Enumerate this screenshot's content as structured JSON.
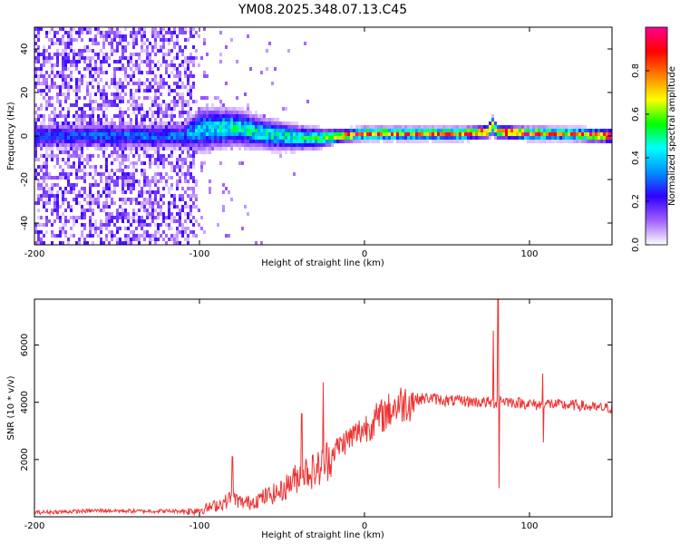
{
  "title": "YM08.2025.348.07.13.C45",
  "chart_data": [
    {
      "type": "heatmap",
      "title": "YM08.2025.348.07.13.C45",
      "xlabel": "Height of straight line (km)",
      "ylabel": "Frequency (Hz)",
      "xlim": [
        -200,
        150
      ],
      "ylim": [
        -50,
        50
      ],
      "xticks": [
        "-200",
        "-100",
        "0",
        "100"
      ],
      "yticks": [
        "-40",
        "-20",
        "0",
        "20",
        "40"
      ],
      "xtick_values": [
        -200,
        -100,
        0,
        100
      ],
      "ytick_values": [
        -40,
        -20,
        0,
        20,
        40
      ],
      "colorbar": {
        "label": "Normalized spectral amplitude",
        "range": [
          0,
          1
        ],
        "ticks": [
          "0.0",
          "0.2",
          "0.4",
          "0.6",
          "0.8"
        ],
        "tick_values": [
          0,
          0.2,
          0.4,
          0.6,
          0.8
        ],
        "colormap": [
          "#ffffff",
          "#a060ff",
          "#3000ff",
          "#0090ff",
          "#00ffff",
          "#00ff00",
          "#ffff00",
          "#ff8000",
          "#ff0000",
          "#ff0090"
        ]
      },
      "ridge": {
        "x": [
          -200,
          -150,
          -110,
          -100,
          -80,
          -60,
          -40,
          -25,
          -15,
          0,
          20,
          40,
          60,
          75,
          78,
          80,
          100,
          120,
          150
        ],
        "center_freq_hz": [
          0,
          0,
          0,
          3,
          4,
          1,
          -1,
          -1,
          0,
          1,
          1,
          1,
          1,
          2,
          5,
          2,
          1,
          1,
          0
        ],
        "peak_amplitude": [
          0.25,
          0.3,
          0.3,
          0.4,
          0.45,
          0.45,
          0.45,
          0.55,
          0.75,
          0.85,
          0.8,
          0.75,
          0.8,
          0.85,
          0.6,
          0.9,
          0.9,
          0.7,
          1.0
        ],
        "half_width_hz": [
          4,
          4,
          4,
          7,
          6,
          5,
          4,
          3,
          2,
          2,
          2,
          2,
          2,
          2,
          3,
          2,
          2,
          2,
          2
        ]
      },
      "noise_region": {
        "x_range": [
          -200,
          -103
        ],
        "freq_range": [
          -50,
          50
        ],
        "amplitude": 0.12
      }
    },
    {
      "type": "line",
      "xlabel": "Height of straight line (km)",
      "ylabel": "SNR (10 * v/v)",
      "xlim": [
        -200,
        150
      ],
      "ylim": [
        0,
        7600
      ],
      "xticks": [
        "-200",
        "-100",
        "0",
        "100"
      ],
      "yticks": [
        "2000",
        "4000",
        "6000"
      ],
      "xtick_values": [
        -200,
        -100,
        0,
        100
      ],
      "ytick_values": [
        2000,
        4000,
        6000
      ],
      "series": [
        {
          "name": "SNR",
          "color": "#ee3333",
          "x": [
            -200,
            -180,
            -160,
            -140,
            -120,
            -105,
            -95,
            -85,
            -80,
            -75,
            -70,
            -60,
            -50,
            -45,
            -40,
            -35,
            -30,
            -25,
            -20,
            -15,
            -10,
            -5,
            0,
            5,
            10,
            15,
            20,
            25,
            30,
            40,
            50,
            60,
            70,
            75,
            78,
            80,
            82,
            85,
            90,
            100,
            105,
            110,
            120,
            130,
            140,
            150
          ],
          "y": [
            150,
            180,
            220,
            200,
            200,
            200,
            300,
            500,
            700,
            500,
            500,
            700,
            900,
            1200,
            1400,
            1600,
            1600,
            1800,
            2200,
            2500,
            2700,
            2900,
            3100,
            3300,
            3500,
            3700,
            3900,
            4000,
            4100,
            4150,
            4050,
            4050,
            4000,
            4000,
            3950,
            4000,
            4100,
            4050,
            4000,
            3950,
            3900,
            3950,
            3900,
            3900,
            3800,
            3800
          ],
          "spikes": [
            {
              "x": -80,
              "y": 2100
            },
            {
              "x": -38,
              "y": 3600
            },
            {
              "x": -25,
              "y": 4700
            },
            {
              "x": 78,
              "y": 6500
            },
            {
              "x": 81,
              "y": 7600
            },
            {
              "x": 81.5,
              "y": 1000
            },
            {
              "x": 108,
              "y": 5000
            },
            {
              "x": 108.5,
              "y": 2600
            }
          ]
        }
      ]
    }
  ]
}
